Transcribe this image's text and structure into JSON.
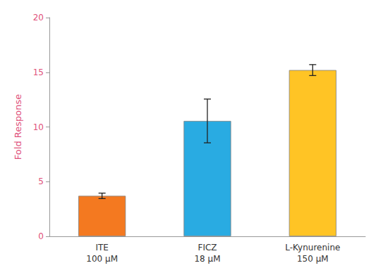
{
  "chart_data": {
    "type": "bar",
    "categories": [
      "ITE\n100 μM",
      "FICZ\n18 μM",
      "L-Kynurenine\n150 μM"
    ],
    "values": [
      3.7,
      10.55,
      15.2
    ],
    "errors": [
      0.25,
      2.0,
      0.5
    ],
    "colors": [
      "#F47920",
      "#29ABE2",
      "#FFC425"
    ],
    "ylabel": "Fold Response",
    "ylim": [
      0,
      20
    ],
    "yticks": [
      0,
      5,
      10,
      15,
      20
    ],
    "grid": false
  }
}
